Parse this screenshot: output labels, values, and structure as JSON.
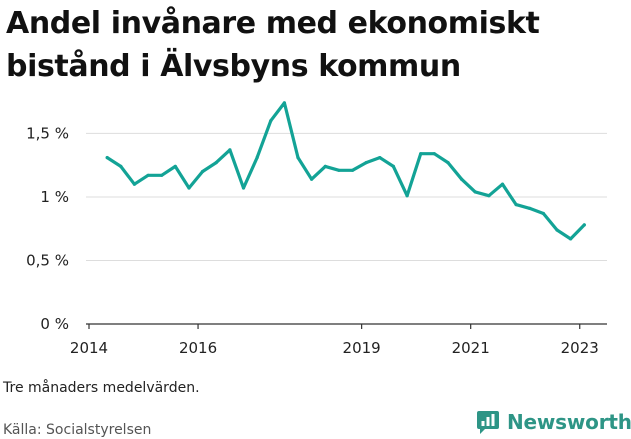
{
  "title": "Andel invånare med ekonomiskt bistånd i Älvsbyns kommun",
  "note": "Tre månaders medelvärden.",
  "source": "Källa: Socialstyrelsen",
  "brand": {
    "name": "Newsworthy",
    "color": "#2e9586",
    "icon": "newsworthy-logo-icon"
  },
  "colors": {
    "line": "#13a396",
    "grid": "#dddddd",
    "axis": "#333333"
  },
  "chart_data": {
    "type": "line",
    "title": "Andel invånare med ekonomiskt bistånd i Älvsbyns kommun",
    "xlabel": "",
    "ylabel": "",
    "x_ticks": [
      "2014",
      "2016",
      "2019",
      "2021",
      "2023"
    ],
    "y_ticks": [
      "0 %",
      "0,5 %",
      "1 %",
      "1,5 %"
    ],
    "ylim": [
      0,
      1.7
    ],
    "grid": true,
    "legend": "none",
    "series": [
      {
        "x": [
          "2014-05",
          "2014-08",
          "2014-11",
          "2015-02",
          "2015-05",
          "2015-08",
          "2015-11",
          "2016-02",
          "2016-05",
          "2016-08",
          "2016-11",
          "2017-02",
          "2017-05",
          "2017-08",
          "2017-11",
          "2018-02",
          "2018-05",
          "2018-08",
          "2018-11",
          "2019-02",
          "2019-05",
          "2019-08",
          "2019-11",
          "2020-02",
          "2020-05",
          "2020-08",
          "2020-11",
          "2021-02",
          "2021-05",
          "2021-08",
          "2021-11",
          "2022-02",
          "2022-05",
          "2022-08",
          "2022-11",
          "2023-02"
        ],
        "values": [
          1.31,
          1.24,
          1.1,
          1.17,
          1.17,
          1.24,
          1.07,
          1.2,
          1.27,
          1.37,
          1.07,
          1.31,
          1.6,
          1.74,
          1.31,
          1.14,
          1.24,
          1.21,
          1.21,
          1.27,
          1.31,
          1.24,
          1.01,
          1.34,
          1.34,
          1.27,
          1.14,
          1.04,
          1.01,
          1.1,
          0.94,
          0.91,
          0.87,
          0.74,
          0.67,
          0.78
        ]
      }
    ]
  }
}
